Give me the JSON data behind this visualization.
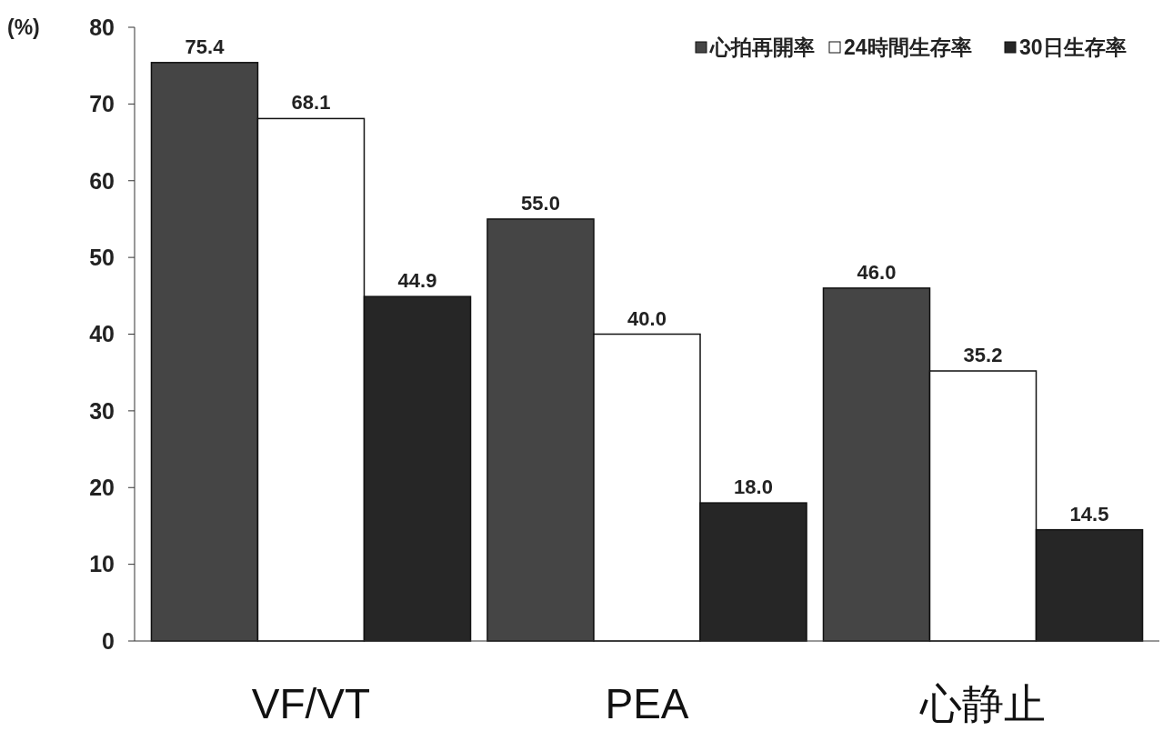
{
  "chart_data": {
    "type": "bar",
    "ylabel": "(%)",
    "categories": [
      "VF/VT",
      "PEA",
      "心静止"
    ],
    "series": [
      {
        "name": "心拍再開率",
        "color": "#454545",
        "values": [
          75.4,
          55.0,
          46.0
        ],
        "value_labels": [
          "75.4",
          "55.0",
          "46.0"
        ]
      },
      {
        "name": "24時間生存率",
        "color": "#ffffff",
        "values": [
          68.1,
          40.0,
          35.2
        ],
        "value_labels": [
          "68.1",
          "40.0",
          "35.2"
        ]
      },
      {
        "name": "30日生存率",
        "color": "#262626",
        "values": [
          44.9,
          18.0,
          14.5
        ],
        "value_labels": [
          "44.9",
          "18.0",
          "14.5"
        ]
      }
    ],
    "ylim": [
      0,
      80
    ],
    "yticks": [
      0,
      10,
      20,
      30,
      40,
      50,
      60,
      70,
      80
    ],
    "grid": false,
    "legend": "top right"
  }
}
